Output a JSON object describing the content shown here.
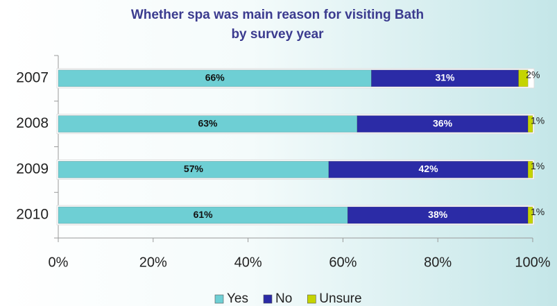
{
  "chart_data": {
    "type": "stacked-bar",
    "orientation": "horizontal",
    "title": [
      "Whether spa was main reason for visiting Bath",
      "by survey year"
    ],
    "categories": [
      "2007",
      "2008",
      "2009",
      "2010"
    ],
    "series": [
      {
        "name": "Yes",
        "color": "#6ecfd4",
        "values": [
          66,
          63,
          57,
          61
        ],
        "value_labels": [
          "66%",
          "63%",
          "57%",
          "61%"
        ]
      },
      {
        "name": "No",
        "color": "#2b2ba6",
        "values": [
          31,
          36,
          42,
          38
        ],
        "value_labels": [
          "31%",
          "36%",
          "42%",
          "38%"
        ]
      },
      {
        "name": "Unsure",
        "color": "#c5d400",
        "values": [
          2,
          1,
          1,
          1
        ],
        "value_labels": [
          "2%",
          "1%",
          "1%",
          "1%"
        ]
      }
    ],
    "xlim": [
      0,
      100
    ],
    "xticks": [
      {
        "value": 0,
        "label": "0%"
      },
      {
        "value": 20,
        "label": "20%"
      },
      {
        "value": 40,
        "label": "40%"
      },
      {
        "value": 60,
        "label": "60%"
      },
      {
        "value": 80,
        "label": "80%"
      },
      {
        "value": 100,
        "label": "100%"
      }
    ],
    "legend": "bottom"
  }
}
